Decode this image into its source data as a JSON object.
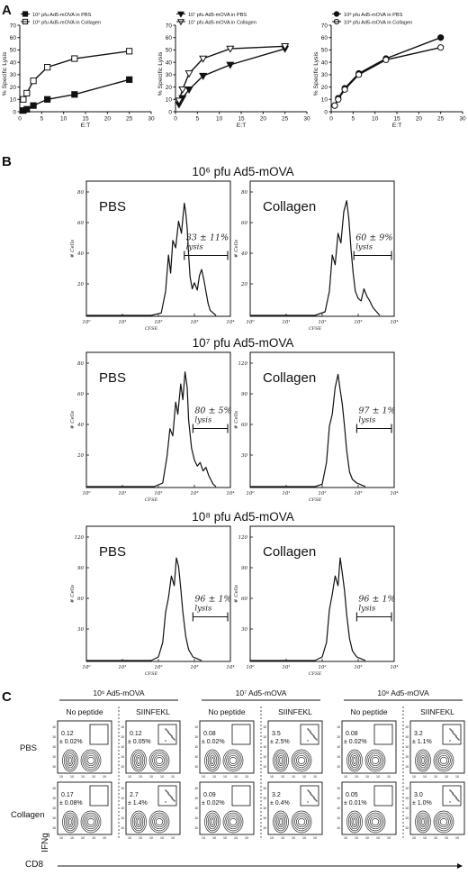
{
  "panel_a": {
    "letter": "A",
    "axis_xlabel": "E:T",
    "axis_ylabel": "% Specific Lysis",
    "yticks": [
      "0",
      "10",
      "20",
      "30",
      "40",
      "50",
      "60",
      "70"
    ],
    "xticks": [
      "0",
      "5",
      "10",
      "15",
      "20",
      "25",
      "30"
    ],
    "charts": [
      {
        "legend_pbs": "10⁶ pfu Ad5-mOVA in PBS",
        "legend_col": "10⁶ pfu Ad5-mOVA in Collagen"
      },
      {
        "legend_pbs": "10⁷ pfu Ad5-mOVA in PBS",
        "legend_col": "10⁷ pfu Ad5-mOVA in Collagen"
      },
      {
        "legend_pbs": "10⁸ pfu Ad5-mOVA in PBS",
        "legend_col": "10⁸ pfu Ad5-mOVA in Collagen"
      }
    ]
  },
  "chart_data": [
    {
      "type": "line",
      "xlabel": "E:T",
      "ylabel": "% Specific Lysis",
      "xlim": [
        0,
        30
      ],
      "ylim": [
        0,
        70
      ],
      "series": [
        {
          "name": "10⁶ pfu Ad5-mOVA in PBS",
          "marker": "filled-square",
          "x": [
            0.8,
            1.6,
            3.1,
            6.3,
            12.5,
            25
          ],
          "y": [
            1,
            2,
            5,
            10,
            14,
            26
          ]
        },
        {
          "name": "10⁶ pfu Ad5-mOVA in Collagen",
          "marker": "open-square",
          "x": [
            0.8,
            1.6,
            3.1,
            6.3,
            12.5,
            25
          ],
          "y": [
            10,
            15,
            25,
            36,
            43,
            49
          ]
        }
      ]
    },
    {
      "type": "line",
      "xlabel": "E:T",
      "ylabel": "% Specific Lysis",
      "xlim": [
        0,
        30
      ],
      "ylim": [
        0,
        70
      ],
      "series": [
        {
          "name": "10⁷ pfu Ad5-mOVA in PBS",
          "marker": "filled-triangle-down",
          "x": [
            0.8,
            1.6,
            3.1,
            6.3,
            12.5,
            25
          ],
          "y": [
            6,
            11,
            18,
            29,
            38,
            51
          ]
        },
        {
          "name": "10⁷ pfu Ad5-mOVA in Collagen",
          "marker": "open-triangle-down",
          "x": [
            0.8,
            1.6,
            3.1,
            6.3,
            12.5,
            25
          ],
          "y": [
            9,
            18,
            31,
            43,
            51,
            53
          ]
        }
      ]
    },
    {
      "type": "line",
      "xlabel": "E:T",
      "ylabel": "% Specific Lysis",
      "xlim": [
        0,
        30
      ],
      "ylim": [
        0,
        70
      ],
      "series": [
        {
          "name": "10⁸ pfu Ad5-mOVA in PBS",
          "marker": "filled-circle",
          "x": [
            0.8,
            1.6,
            3.1,
            6.3,
            12.5,
            25
          ],
          "y": [
            5,
            11,
            19,
            31,
            43,
            60
          ]
        },
        {
          "name": "10⁸ pfu Ad5-mOVA in Collagen",
          "marker": "open-circle",
          "x": [
            0.8,
            1.6,
            3.1,
            6.3,
            12.5,
            25
          ],
          "y": [
            5,
            10,
            18,
            30,
            42,
            52
          ]
        }
      ]
    }
  ],
  "panel_b": {
    "letter": "B",
    "xlabel": "CFSE",
    "ylabel": "# Cells",
    "xticks": [
      "10⁰",
      "10¹",
      "10²",
      "10³",
      "10⁴"
    ],
    "rows": [
      {
        "title": "10⁶ pfu Ad5-mOVA",
        "left": {
          "label": "PBS",
          "stat": "33 ± 11%",
          "word": "lysis",
          "yticks": [
            "80",
            "60",
            "40",
            "20"
          ]
        },
        "right": {
          "label": "Collagen",
          "stat": "60 ± 9%",
          "word": "lysis",
          "yticks": [
            "80",
            "60",
            "40",
            "20"
          ]
        }
      },
      {
        "title": "10⁷ pfu Ad5-mOVA",
        "left": {
          "label": "PBS",
          "stat": "80 ± 5%",
          "word": "lysis",
          "yticks": [
            "80",
            "60",
            "40",
            "20"
          ]
        },
        "right": {
          "label": "Collagen",
          "stat": "97 ± 1%",
          "word": "lysis",
          "yticks": [
            "120",
            "90",
            "60",
            "30"
          ]
        }
      },
      {
        "title": "10⁸ pfu Ad5-mOVA",
        "left": {
          "label": "PBS",
          "stat": "96 ± 1%",
          "word": "lysis",
          "yticks": [
            "120",
            "90",
            "60",
            "30"
          ]
        },
        "right": {
          "label": "Collagen",
          "stat": "96 ± 1%",
          "word": "lysis",
          "yticks": [
            "120",
            "90",
            "60",
            "30"
          ]
        }
      }
    ]
  },
  "panel_c": {
    "letter": "C",
    "row_labels": [
      "PBS",
      "Collagen"
    ],
    "y_axis": "IFNg",
    "x_axis": "CD8",
    "groups": [
      {
        "title": "10⁶ Ad5-mOVA",
        "cols": [
          "No peptide",
          "SIINFEKL"
        ],
        "vals": [
          [
            "0.12",
            "± 0.02%",
            "0.12",
            "± 0.05%"
          ],
          [
            "0.17",
            "± 0.08%",
            "2.7",
            "± 1.4%"
          ]
        ]
      },
      {
        "title": "10⁷ Ad5-mOVA",
        "cols": [
          "No peptide",
          "SIINFEKL"
        ],
        "vals": [
          [
            "0.08",
            "± 0.02%",
            "3.5",
            "± 2.5%"
          ],
          [
            "0.09",
            "± 0.02%",
            "3.2",
            "± 0.4%"
          ]
        ]
      },
      {
        "title": "10⁸ Ad5-mOVA",
        "cols": [
          "No peptide",
          "SIINFEKL"
        ],
        "vals": [
          [
            "0.08",
            "± 0.02%",
            "3.2",
            "± 1.1%"
          ],
          [
            "0.05",
            "± 0.01%",
            "3.0",
            "± 1.0%"
          ]
        ]
      }
    ]
  }
}
